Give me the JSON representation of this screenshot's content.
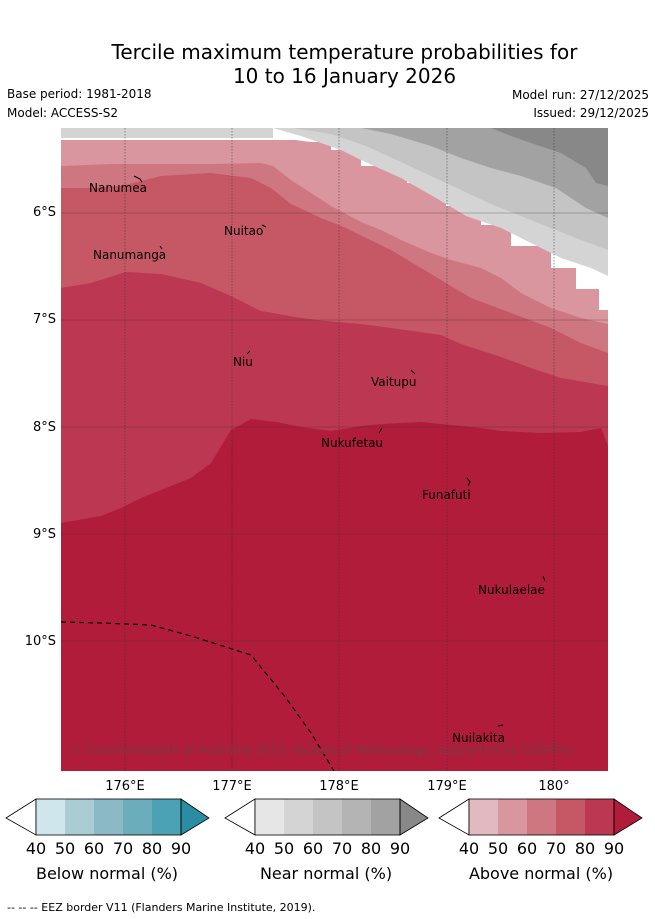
{
  "title": {
    "line1": "Tercile maximum temperature probabilities for",
    "line2": "10 to 16 January 2026"
  },
  "meta": {
    "base_period": "Base period: 1981-2018",
    "model": "Model: ACCESS-S2",
    "model_run": "Model run: 27/12/2025",
    "issued": "Issued: 29/12/2025"
  },
  "axes": {
    "lat_labels": [
      "6°S",
      "7°S",
      "8°S",
      "9°S",
      "10°S"
    ],
    "lon_labels": [
      "176°E",
      "177°E",
      "178°E",
      "179°E",
      "180°"
    ]
  },
  "places": [
    "Nanumea",
    "Nuitao",
    "Nanumanga",
    "Niu",
    "Vaitupu",
    "Nukufetau",
    "Funafuti",
    "Nukulaelae",
    "Nuilakita"
  ],
  "credit": "© Commonwealth of Australia 2025, Bureau of Meteorology, supported by COSPPac",
  "colorbars": [
    {
      "label": "Below normal (%)",
      "ticks": [
        "40",
        "50",
        "60",
        "70",
        "80",
        "90"
      ],
      "colors": [
        "#cfe6ec",
        "#a9cdd3",
        "#8bb9c6",
        "#6cadbc",
        "#4aa2b4",
        "#2b8da3"
      ]
    },
    {
      "label": "Near normal (%)",
      "ticks": [
        "40",
        "50",
        "60",
        "70",
        "80",
        "90"
      ],
      "colors": [
        "#e6e6e6",
        "#d4d4d4",
        "#c4c4c4",
        "#b4b4b4",
        "#a2a2a2",
        "#888888"
      ]
    },
    {
      "label": "Above normal (%)",
      "ticks": [
        "40",
        "50",
        "60",
        "70",
        "80",
        "90"
      ],
      "colors": [
        "#e2b9c0",
        "#d9969f",
        "#cf7780",
        "#c65764",
        "#bc3751",
        "#b01c39"
      ]
    }
  ],
  "footer": "--  --  -- EEZ border V11 (Flanders Marine Institute, 2019)."
}
